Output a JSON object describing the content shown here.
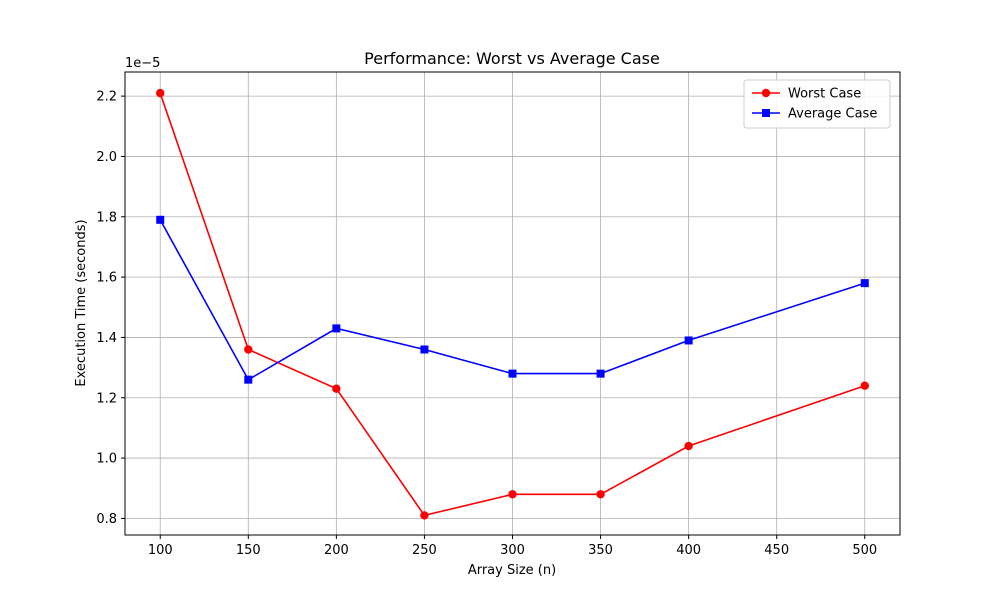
{
  "chart_data": {
    "type": "line",
    "title": "Performance: Worst vs Average Case",
    "xlabel": "Array Size (n)",
    "ylabel": "Execution Time (seconds)",
    "y_offset_label": "1e−5",
    "y_scale_factor": 1e-05,
    "xlim": [
      80,
      520
    ],
    "ylim": [
      0.745,
      2.28
    ],
    "x_ticks": [
      100,
      150,
      200,
      250,
      300,
      350,
      400,
      450,
      500
    ],
    "x_tick_labels": [
      "100",
      "150",
      "200",
      "250",
      "300",
      "350",
      "400",
      "450",
      "500"
    ],
    "y_ticks": [
      0.8,
      1.0,
      1.2,
      1.4,
      1.6,
      1.8,
      2.0,
      2.2
    ],
    "y_tick_labels": [
      "0.8",
      "1.0",
      "1.2",
      "1.4",
      "1.6",
      "1.8",
      "2.0",
      "2.2"
    ],
    "grid": true,
    "legend_position": "top-right",
    "x": [
      100,
      150,
      200,
      250,
      300,
      350,
      400,
      500
    ],
    "series": [
      {
        "name": "Worst Case",
        "color": "#ff0000",
        "marker": "circle",
        "values": [
          2.21,
          1.36,
          1.23,
          0.81,
          0.88,
          0.88,
          1.04,
          1.24
        ]
      },
      {
        "name": "Average Case",
        "color": "#0000ff",
        "marker": "square",
        "values": [
          1.79,
          1.26,
          1.43,
          1.36,
          1.28,
          1.28,
          1.39,
          1.58
        ]
      }
    ]
  }
}
